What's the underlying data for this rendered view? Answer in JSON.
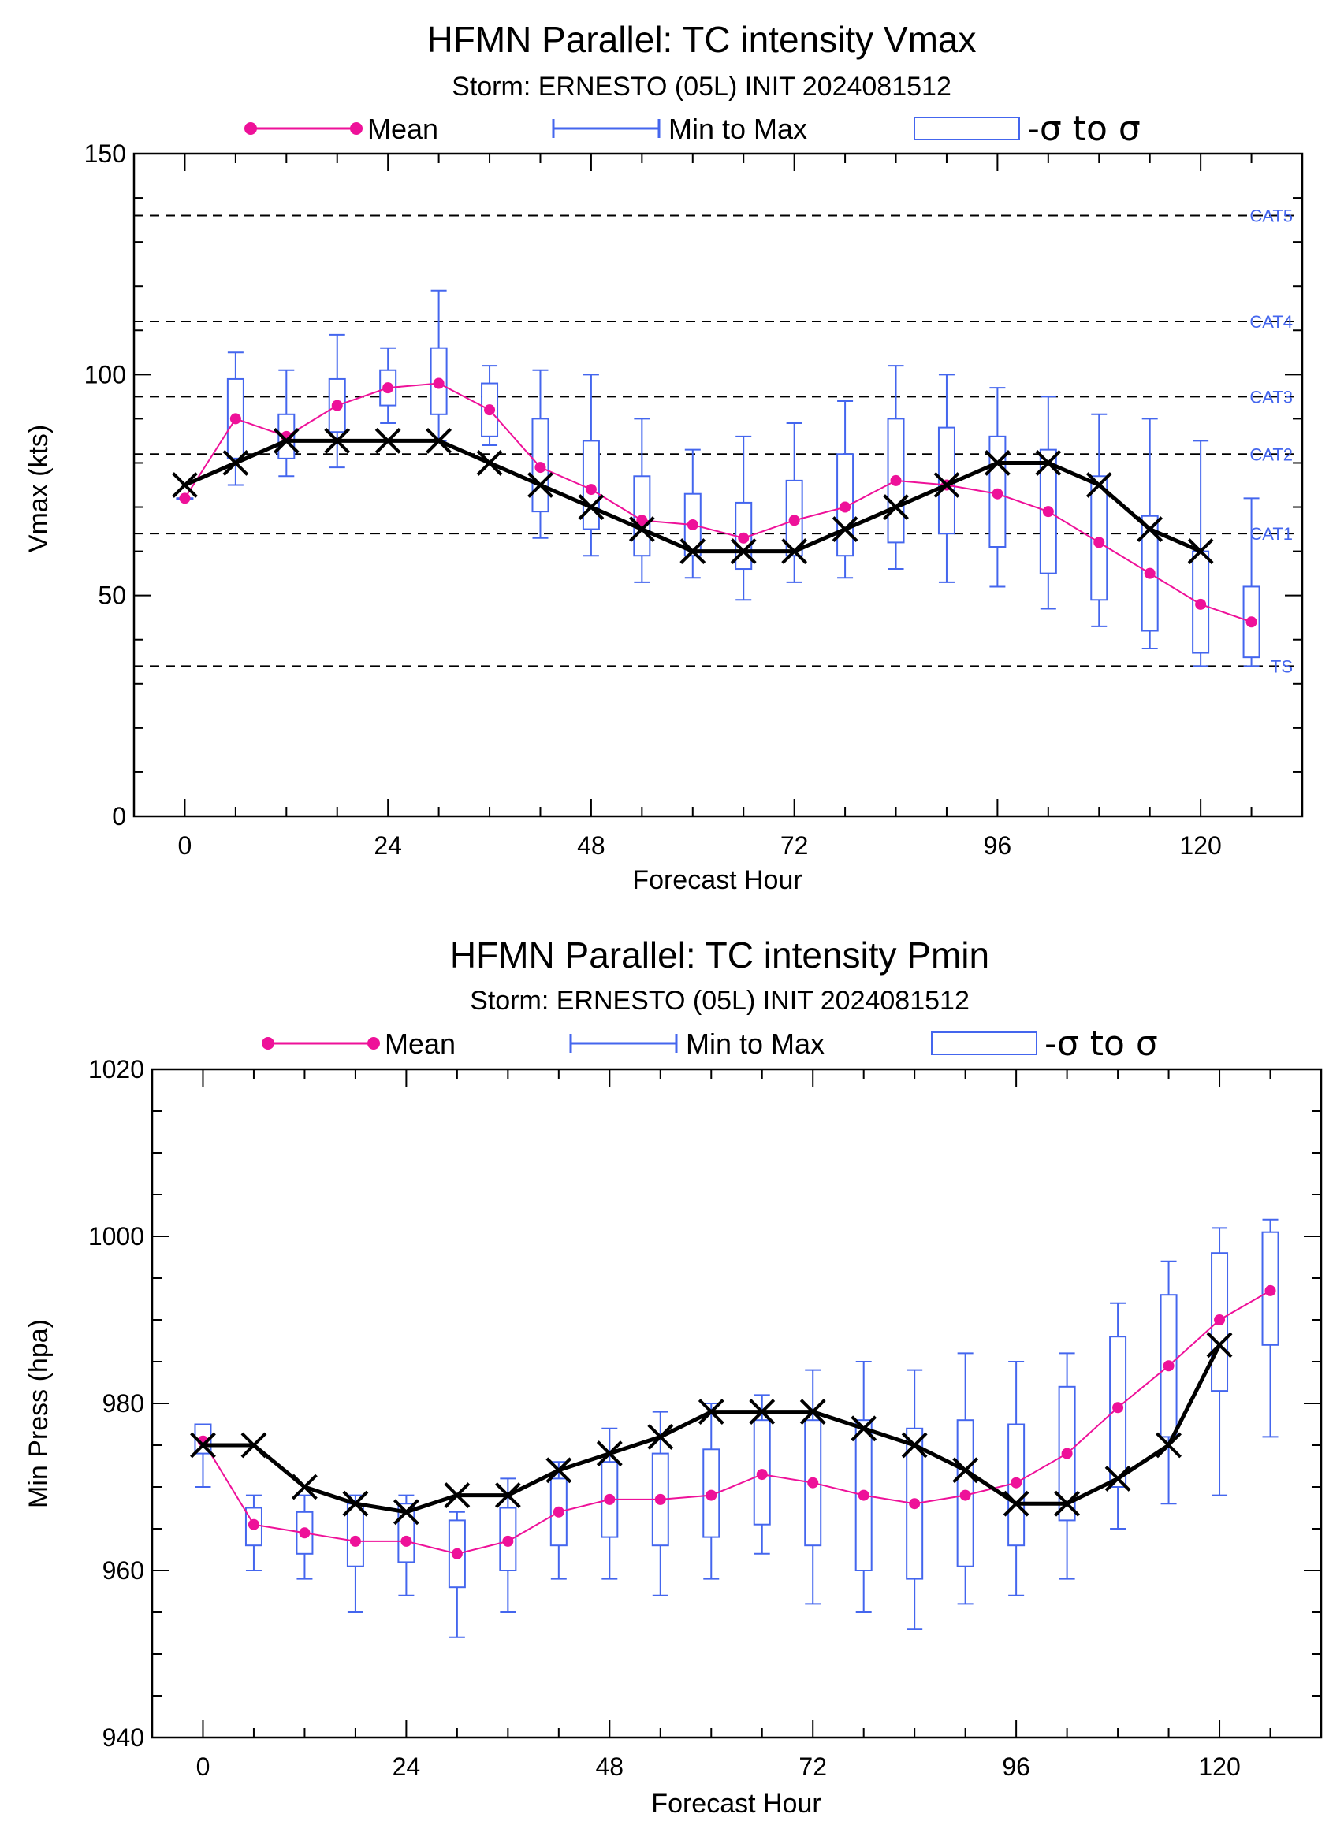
{
  "colors": {
    "mean": "#ee1199",
    "range": "#4466ee",
    "best": "#000000",
    "guide": "#000000",
    "cat": "#4466ee"
  },
  "legend": {
    "mean": "Mean",
    "range": "Min to Max",
    "sigma": "-σ to σ"
  },
  "chart_data": [
    {
      "type": "box",
      "title": "HFMN Parallel: TC intensity Vmax",
      "subtitle": "Storm: ERNESTO (05L) INIT 2024081512",
      "xlabel": "Forecast Hour",
      "ylabel": "Vmax (kts)",
      "xlim": [
        -6,
        132
      ],
      "ylim": [
        0,
        150
      ],
      "xticks": [
        0,
        24,
        48,
        72,
        96,
        120
      ],
      "yticks": [
        0,
        50,
        100,
        150
      ],
      "yminor": 10,
      "thresholds": [
        {
          "label": "TS",
          "value": 34
        },
        {
          "label": "CAT1",
          "value": 64
        },
        {
          "label": "CAT2",
          "value": 82
        },
        {
          "label": "CAT3",
          "value": 95
        },
        {
          "label": "CAT4",
          "value": 112
        },
        {
          "label": "CAT5",
          "value": 136
        }
      ],
      "hours": [
        0,
        6,
        12,
        18,
        24,
        30,
        36,
        42,
        48,
        54,
        60,
        66,
        72,
        78,
        84,
        90,
        96,
        102,
        108,
        114,
        120,
        126
      ],
      "mean": [
        72,
        90,
        86,
        93,
        97,
        98,
        92,
        79,
        74,
        67,
        66,
        63,
        67,
        70,
        76,
        75,
        73,
        69,
        62,
        55,
        48,
        44
      ],
      "min": [
        72,
        75,
        77,
        79,
        89,
        85,
        84,
        63,
        59,
        53,
        54,
        49,
        53,
        54,
        56,
        53,
        52,
        47,
        43,
        38,
        34,
        34
      ],
      "max": [
        72,
        105,
        101,
        109,
        106,
        119,
        102,
        101,
        100,
        90,
        83,
        86,
        89,
        94,
        102,
        100,
        97,
        95,
        91,
        90,
        85,
        72
      ],
      "sigma_low": [
        72,
        81,
        81,
        87,
        93,
        91,
        86,
        69,
        65,
        59,
        59,
        56,
        59,
        59,
        62,
        64,
        61,
        55,
        49,
        42,
        37,
        36
      ],
      "sigma_high": [
        72,
        99,
        91,
        99,
        101,
        106,
        98,
        90,
        85,
        77,
        73,
        71,
        76,
        82,
        90,
        88,
        86,
        83,
        77,
        68,
        60,
        52
      ],
      "best_hours": [
        0,
        6,
        12,
        18,
        24,
        30,
        36,
        42,
        48,
        54,
        60,
        66,
        72,
        78,
        84,
        90,
        96,
        102,
        108,
        114,
        120
      ],
      "best": [
        75,
        80,
        85,
        85,
        85,
        85,
        80,
        75,
        70,
        65,
        60,
        60,
        60,
        65,
        70,
        75,
        80,
        80,
        75,
        65,
        60
      ]
    },
    {
      "type": "box",
      "title": "HFMN Parallel: TC intensity Pmin",
      "subtitle": "Storm: ERNESTO (05L) INIT 2024081512",
      "xlabel": "Forecast Hour",
      "ylabel": "Min Press (hpa)",
      "xlim": [
        -6,
        132
      ],
      "ylim": [
        940,
        1020
      ],
      "xticks": [
        0,
        24,
        48,
        72,
        96,
        120
      ],
      "yticks": [
        940,
        960,
        980,
        1000,
        1020
      ],
      "yminor": 5,
      "thresholds": [],
      "hours": [
        0,
        6,
        12,
        18,
        24,
        30,
        36,
        42,
        48,
        54,
        60,
        66,
        72,
        78,
        84,
        90,
        96,
        102,
        108,
        114,
        120,
        126
      ],
      "mean": [
        975.5,
        965.5,
        964.5,
        963.5,
        963.5,
        962,
        963.5,
        967,
        968.5,
        968.5,
        969,
        971.5,
        970.5,
        969,
        968,
        969,
        970.5,
        974,
        979.5,
        984.5,
        990,
        993.5
      ],
      "min": [
        970,
        960,
        959,
        955,
        957,
        952,
        955,
        959,
        959,
        957,
        959,
        962,
        956,
        955,
        953,
        956,
        957,
        959,
        965,
        968,
        969,
        976
      ],
      "max": [
        977,
        969,
        969,
        969,
        969,
        967,
        971,
        973,
        977,
        979,
        980,
        981,
        984,
        985,
        984,
        986,
        985,
        986,
        992,
        997,
        1001,
        1002
      ],
      "sigma_low": [
        974,
        963,
        962,
        960.5,
        961,
        958,
        960,
        963,
        964,
        963,
        964,
        965.5,
        963,
        960,
        959,
        960.5,
        963,
        966,
        970,
        976,
        981.5,
        987
      ],
      "sigma_high": [
        977.5,
        967.5,
        967,
        968,
        968,
        966,
        967.5,
        971,
        973,
        974,
        974.5,
        978,
        978,
        978,
        977,
        978,
        977.5,
        982,
        988,
        993,
        998,
        1000.5
      ],
      "best_hours": [
        0,
        6,
        12,
        18,
        24,
        30,
        36,
        42,
        48,
        54,
        60,
        66,
        72,
        78,
        84,
        90,
        96,
        102,
        108,
        114,
        120
      ],
      "best": [
        975,
        975,
        970,
        968,
        967,
        969,
        969,
        972,
        974,
        976,
        979,
        979,
        979,
        977,
        975,
        972,
        968,
        968,
        971,
        975,
        987
      ]
    }
  ]
}
